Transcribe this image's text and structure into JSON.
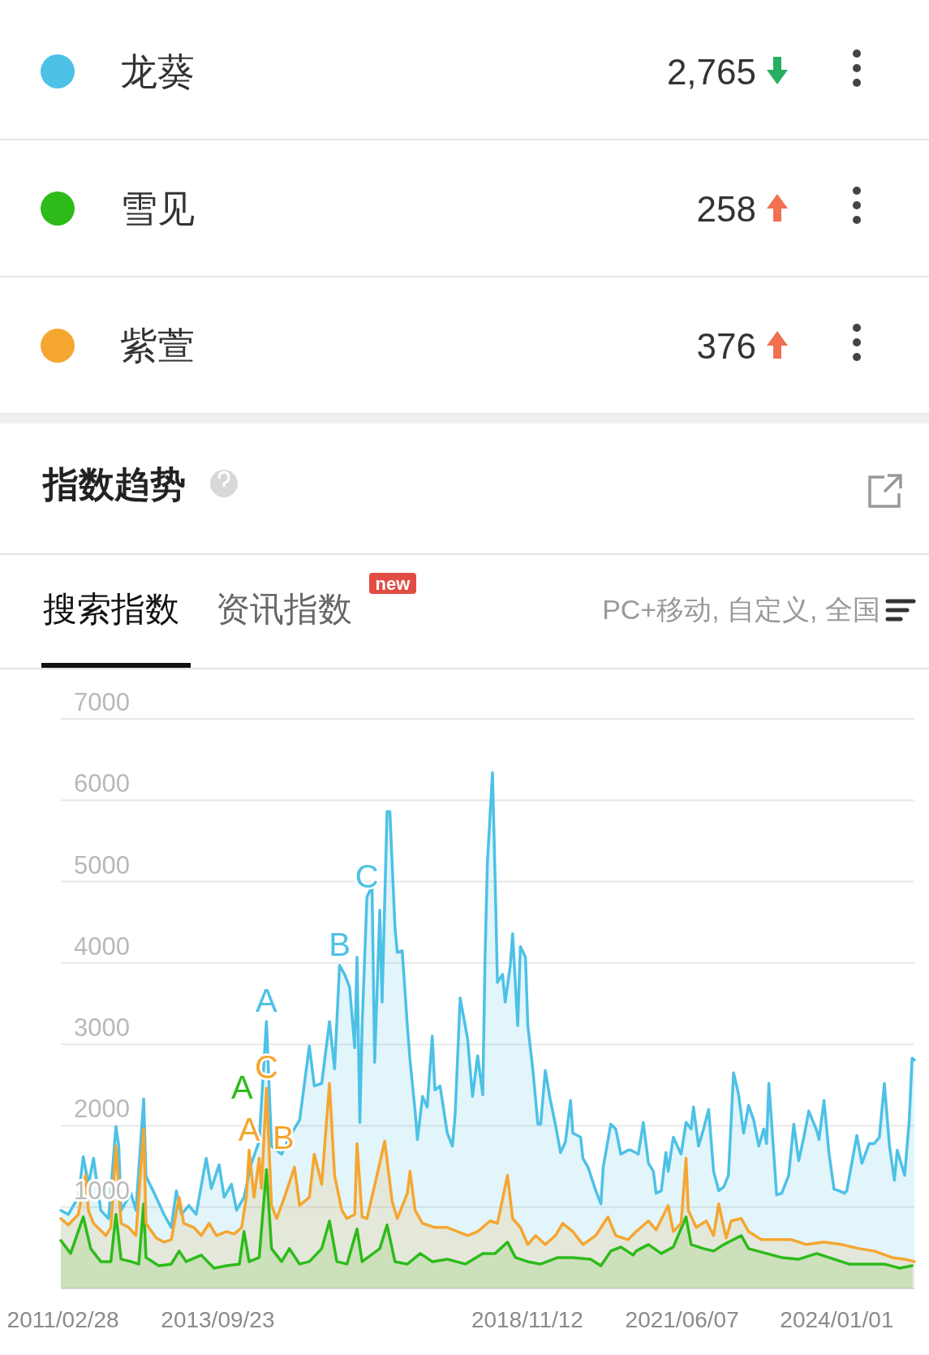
{
  "chart_data": {
    "type": "area",
    "title": "指数趋势",
    "subtitle": "PC+移动, 自定义, 全国",
    "legend": "top",
    "grid": "y",
    "xlim": [
      "2011-02-15",
      "2025-04-15"
    ],
    "xticks": [
      {
        "value": "2011-02-28",
        "label": "2011/02/28"
      },
      {
        "value": "2013-09-23",
        "label": "2013/09/23"
      },
      {
        "value": "2018-11-12",
        "label": "2018/11/12"
      },
      {
        "value": "2021-06-07",
        "label": "2021/06/07"
      },
      {
        "value": "2024-01-01",
        "label": "2024/01/01"
      }
    ],
    "ylim": [
      0,
      7000
    ],
    "yticks": [
      {
        "value": 0,
        "label": null
      },
      1000,
      2000,
      3000,
      4000,
      5000,
      6000,
      7000
    ],
    "annotations": [
      "2,765",
      "258",
      "376",
      "搜索指数",
      "资讯指数",
      "new",
      {
        "text": "A",
        "x": "2014-07-15",
        "y": 3280
      },
      {
        "text": "B",
        "x": "2015-10-01",
        "y": 3970
      },
      {
        "text": "C",
        "x": "2016-03-15",
        "y": 4810
      },
      {
        "text": "A",
        "x": "2014-04-01",
        "y": 1700
      },
      {
        "text": "B",
        "x": "2014-06-01",
        "y": 1600
      },
      {
        "text": "C",
        "x": "2014-07-15",
        "y": 2460
      },
      {
        "text": "A",
        "x": "2014-07-15",
        "y": 1460
      }
    ],
    "series": [
      {
        "name": "龙葵",
        "color": "#4dc1e6",
        "x": [
          "2011-02-15",
          "2011-04-01",
          "2011-06-01",
          "2011-07-01",
          "2011-08-01",
          "2011-09-01",
          "2011-10-15",
          "2011-12-01",
          "2012-01-15",
          "2012-02-01",
          "2012-02-15",
          "2012-04-15",
          "2012-05-15",
          "2012-07-01",
          "2012-07-15",
          "2012-09-15",
          "2012-11-01",
          "2012-12-15",
          "2013-01-15",
          "2013-02-15",
          "2013-04-01",
          "2013-05-15",
          "2013-07-15",
          "2013-08-15",
          "2013-10-01",
          "2013-11-01",
          "2013-12-15",
          "2014-01-15",
          "2014-03-01",
          "2014-04-15",
          "2014-06-01",
          "2014-07-15",
          "2014-08-15",
          "2014-10-15",
          "2014-12-01",
          "2015-02-01",
          "2015-04-01",
          "2015-05-01",
          "2015-06-15",
          "2015-08-01",
          "2015-09-01",
          "2015-10-01",
          "2015-11-01",
          "2015-12-01",
          "2016-01-01",
          "2016-01-15",
          "2016-02-01",
          "2016-02-15",
          "2016-03-15",
          "2016-04-15",
          "2016-05-01",
          "2016-06-01",
          "2016-06-15",
          "2016-07-15",
          "2016-08-01",
          "2016-09-01",
          "2016-09-15",
          "2016-10-15",
          "2016-11-15",
          "2016-12-01",
          "2017-01-01",
          "2017-01-15",
          "2017-02-15",
          "2017-03-15",
          "2017-04-15",
          "2017-05-01",
          "2017-06-01",
          "2017-07-15",
          "2017-08-15",
          "2017-09-01",
          "2017-10-01",
          "2017-11-15",
          "2017-12-15",
          "2018-01-15",
          "2018-02-15",
          "2018-03-01",
          "2018-03-15",
          "2018-04-15",
          "2018-05-01",
          "2018-05-15",
          "2018-06-15",
          "2018-07-01",
          "2018-08-01",
          "2018-08-15",
          "2018-09-15",
          "2018-10-01",
          "2018-11-01",
          "2018-11-15",
          "2018-12-15",
          "2019-01-15",
          "2019-02-01",
          "2019-03-01",
          "2019-04-01",
          "2019-05-01",
          "2019-06-01",
          "2019-07-01",
          "2019-08-01",
          "2019-08-15",
          "2019-10-01",
          "2019-10-15",
          "2019-11-15",
          "2020-01-01",
          "2020-02-01",
          "2020-02-15",
          "2020-04-01",
          "2020-05-01",
          "2020-06-01",
          "2020-07-15",
          "2020-08-01",
          "2020-09-15",
          "2020-10-15",
          "2020-11-15",
          "2020-12-15",
          "2021-01-01",
          "2021-02-01",
          "2021-03-01",
          "2021-03-15",
          "2021-04-15",
          "2021-06-01",
          "2021-07-01",
          "2021-08-01",
          "2021-08-15",
          "2021-09-15",
          "2021-10-15",
          "2021-11-15",
          "2021-12-15",
          "2022-01-15",
          "2022-02-15",
          "2022-03-15",
          "2022-04-15",
          "2022-05-15",
          "2022-06-15",
          "2022-07-15",
          "2022-08-15",
          "2022-09-15",
          "2022-10-15",
          "2022-11-01",
          "2022-11-15",
          "2022-12-15",
          "2023-01-01",
          "2023-02-01",
          "2023-03-15",
          "2023-04-15",
          "2023-05-15",
          "2023-06-15",
          "2023-07-15",
          "2023-09-01",
          "2023-09-15",
          "2023-10-15",
          "2023-11-15",
          "2023-12-15",
          "2024-01-15",
          "2024-02-15",
          "2024-03-01",
          "2024-05-01",
          "2024-06-01",
          "2024-07-15",
          "2024-08-15",
          "2024-09-15",
          "2024-10-15",
          "2024-11-15",
          "2024-12-15",
          "2025-01-01",
          "2025-02-15",
          "2025-03-15",
          "2025-04-01",
          "2025-04-15"
        ],
        "values": [
          960,
          910,
          1120,
          1620,
          1280,
          1600,
          960,
          860,
          1990,
          1750,
          960,
          1170,
          960,
          2330,
          1380,
          1120,
          910,
          750,
          1200,
          910,
          1020,
          910,
          1600,
          1230,
          1520,
          1120,
          1280,
          960,
          1120,
          1540,
          1810,
          3280,
          1750,
          1650,
          1860,
          2070,
          2980,
          2490,
          2520,
          3280,
          2700,
          3970,
          3860,
          3700,
          2960,
          4070,
          2040,
          3230,
          4810,
          4940,
          2780,
          4650,
          3520,
          5860,
          5860,
          4440,
          4130,
          4150,
          3230,
          2810,
          2180,
          1830,
          2360,
          2230,
          3100,
          2440,
          2490,
          1910,
          1750,
          2150,
          3570,
          3070,
          2360,
          2860,
          2380,
          4070,
          5230,
          6340,
          5020,
          3760,
          3860,
          3520,
          3970,
          4360,
          3230,
          4200,
          4070,
          3230,
          2700,
          2020,
          2020,
          2680,
          2310,
          2020,
          1670,
          1800,
          2310,
          1910,
          1860,
          1600,
          1490,
          1200,
          1040,
          1490,
          2020,
          1960,
          1650,
          1700,
          1700,
          1650,
          2040,
          1540,
          1440,
          1170,
          1200,
          1670,
          1440,
          1860,
          1650,
          2040,
          1960,
          2230,
          1750,
          1960,
          2200,
          1440,
          1200,
          1250,
          1390,
          2650,
          2390,
          1910,
          2250,
          2070,
          1750,
          1960,
          1780,
          2520,
          1650,
          1150,
          1170,
          1390,
          2020,
          1570,
          1860,
          2180,
          1940,
          1830,
          2310,
          1650,
          1220,
          1200,
          1170,
          1200,
          1880,
          1540,
          1780,
          1780,
          1860,
          2520,
          1750,
          1330,
          1700,
          1390,
          2070,
          2830,
          2810
        ]
      },
      {
        "name": "雪见",
        "color": "#2dbb1a",
        "x": [
          "2011-02-15",
          "2011-04-15",
          "2011-07-01",
          "2011-08-15",
          "2011-10-15",
          "2011-12-15",
          "2012-01-15",
          "2012-02-15",
          "2012-04-15",
          "2012-06-01",
          "2012-07-01",
          "2012-07-15",
          "2012-10-01",
          "2012-12-15",
          "2013-02-01",
          "2013-03-15",
          "2013-06-15",
          "2013-09-01",
          "2013-11-15",
          "2014-02-01",
          "2014-03-01",
          "2014-04-01",
          "2014-06-01",
          "2014-07-15",
          "2014-08-15",
          "2014-10-15",
          "2014-12-01",
          "2015-02-01",
          "2015-04-01",
          "2015-06-15",
          "2015-08-01",
          "2015-09-15",
          "2015-11-15",
          "2016-01-15",
          "2016-02-15",
          "2016-06-01",
          "2016-07-15",
          "2016-09-01",
          "2016-11-15",
          "2017-02-01",
          "2017-04-15",
          "2017-07-15",
          "2017-11-01",
          "2018-02-15",
          "2018-05-01",
          "2018-07-15",
          "2018-09-01",
          "2018-11-15",
          "2019-02-01",
          "2019-05-15",
          "2019-08-15",
          "2019-12-01",
          "2020-02-01",
          "2020-04-01",
          "2020-06-01",
          "2020-08-15",
          "2020-09-01",
          "2020-11-15",
          "2021-02-01",
          "2021-04-15",
          "2021-07-01",
          "2021-08-01",
          "2021-10-15",
          "2021-12-15",
          "2022-02-15",
          "2022-06-01",
          "2022-07-15",
          "2022-11-01",
          "2023-02-01",
          "2023-05-15",
          "2023-09-01",
          "2023-12-15",
          "2024-03-15",
          "2024-07-01",
          "2024-10-15",
          "2025-01-15",
          "2025-04-01"
        ],
        "values": [
          590,
          430,
          880,
          490,
          330,
          330,
          910,
          360,
          330,
          300,
          1040,
          380,
          280,
          300,
          460,
          330,
          410,
          250,
          280,
          300,
          700,
          330,
          380,
          1460,
          490,
          330,
          490,
          300,
          330,
          490,
          830,
          330,
          300,
          730,
          330,
          490,
          780,
          330,
          300,
          430,
          330,
          360,
          300,
          430,
          430,
          570,
          380,
          330,
          300,
          380,
          380,
          360,
          280,
          460,
          510,
          410,
          460,
          540,
          430,
          510,
          880,
          540,
          490,
          460,
          540,
          650,
          490,
          430,
          380,
          360,
          430,
          360,
          300,
          300,
          300,
          250,
          280
        ]
      },
      {
        "name": "紫萱",
        "color": "#f5a630",
        "x": [
          "2011-02-15",
          "2011-04-01",
          "2011-06-01",
          "2011-07-15",
          "2011-08-01",
          "2011-09-01",
          "2011-11-15",
          "2011-12-15",
          "2012-01-15",
          "2012-02-15",
          "2012-04-01",
          "2012-05-15",
          "2012-07-01",
          "2012-07-15",
          "2012-09-15",
          "2012-11-01",
          "2012-12-15",
          "2013-02-01",
          "2013-03-01",
          "2013-05-01",
          "2013-06-15",
          "2013-08-01",
          "2013-09-15",
          "2013-11-15",
          "2014-01-01",
          "2014-02-15",
          "2014-03-15",
          "2014-04-01",
          "2014-05-01",
          "2014-06-01",
          "2014-06-15",
          "2014-07-15",
          "2014-08-15",
          "2014-09-15",
          "2014-11-01",
          "2015-01-01",
          "2015-02-01",
          "2015-04-01",
          "2015-05-01",
          "2015-06-15",
          "2015-08-01",
          "2015-09-01",
          "2015-10-15",
          "2015-11-15",
          "2016-01-01",
          "2016-01-15",
          "2016-02-15",
          "2016-03-15",
          "2016-05-15",
          "2016-07-01",
          "2016-08-15",
          "2016-09-15",
          "2016-11-15",
          "2016-12-01",
          "2017-01-01",
          "2017-02-15",
          "2017-05-01",
          "2017-07-15",
          "2017-09-15",
          "2017-11-15",
          "2018-01-15",
          "2018-04-01",
          "2018-05-15",
          "2018-07-15",
          "2018-08-15",
          "2018-10-01",
          "2018-11-15",
          "2019-01-01",
          "2019-03-01",
          "2019-05-01",
          "2019-06-15",
          "2019-08-15",
          "2019-10-15",
          "2020-01-01",
          "2020-03-15",
          "2020-05-01",
          "2020-07-15",
          "2020-09-01",
          "2020-11-15",
          "2021-01-01",
          "2021-03-15",
          "2021-04-15",
          "2021-06-01",
          "2021-07-01",
          "2021-07-15",
          "2021-09-01",
          "2021-11-01",
          "2021-12-15",
          "2022-01-15",
          "2022-03-01",
          "2022-04-01",
          "2022-06-01",
          "2022-07-15",
          "2022-10-01",
          "2022-12-15",
          "2023-04-01",
          "2023-07-01",
          "2023-10-15",
          "2024-02-01",
          "2024-05-15",
          "2024-08-15",
          "2024-12-01",
          "2025-02-15",
          "2025-04-15"
        ],
        "values": [
          860,
          780,
          910,
          1390,
          960,
          800,
          650,
          750,
          1750,
          800,
          750,
          650,
          1960,
          800,
          620,
          570,
          600,
          1120,
          800,
          750,
          650,
          800,
          650,
          700,
          670,
          750,
          1120,
          1700,
          1120,
          1600,
          1230,
          2460,
          1020,
          860,
          1120,
          1490,
          1020,
          1120,
          1650,
          1280,
          2520,
          1390,
          960,
          860,
          910,
          1780,
          880,
          860,
          1390,
          1810,
          1070,
          860,
          1170,
          1440,
          960,
          800,
          750,
          750,
          700,
          650,
          700,
          830,
          800,
          1390,
          860,
          750,
          540,
          650,
          540,
          650,
          800,
          700,
          540,
          650,
          880,
          650,
          600,
          700,
          830,
          720,
          1020,
          700,
          800,
          1600,
          960,
          750,
          830,
          650,
          1040,
          620,
          830,
          860,
          700,
          600,
          600,
          600,
          540,
          570,
          540,
          490,
          460,
          380,
          360,
          330
        ]
      }
    ]
  }
}
